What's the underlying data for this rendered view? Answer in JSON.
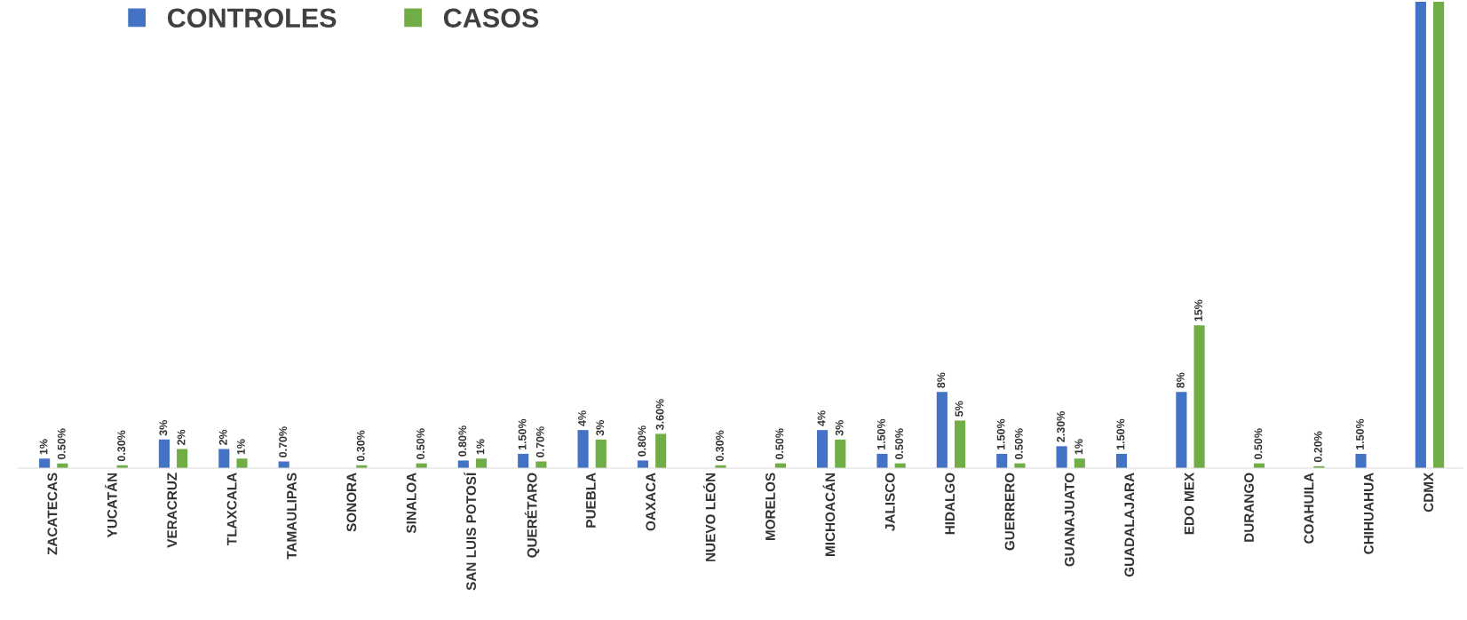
{
  "chart_data": {
    "type": "bar",
    "categories": [
      "ZACATECAS",
      "YUCATÁN",
      "VERACRUZ",
      "TLAXCALA",
      "TAMAULIPAS",
      "SONORA",
      "SINALOA",
      "SAN LUIS POTOSÍ",
      "QUERÉTARO",
      "PUEBLA",
      "OAXACA",
      "NUEVO LEÓN",
      "MORELOS",
      "MICHOACÁN",
      "JALISCO",
      "HIDALGO",
      "GUERRERO",
      "GUANAJUATO",
      "GUADALAJARA",
      "EDO MEX",
      "DURANGO",
      "COAHUILA",
      "CHIHUAHUA",
      "CDMX"
    ],
    "series": [
      {
        "name": "CONTROLES",
        "color": "#4472c4",
        "values": [
          1,
          null,
          3,
          2,
          0.7,
          null,
          null,
          0.8,
          1.5,
          4,
          0.8,
          null,
          null,
          4,
          1.5,
          8,
          1.5,
          2.3,
          1.5,
          8,
          null,
          null,
          1.5,
          49
        ],
        "value_labels": [
          "1%",
          null,
          "3%",
          "2%",
          "0.70%",
          null,
          null,
          "0.80%",
          "1.50%",
          "4%",
          "0.80%",
          null,
          null,
          "4%",
          "1.50%",
          "8%",
          "1.50%",
          "2.30%",
          "1.50%",
          "8%",
          null,
          null,
          "1.50%",
          null
        ]
      },
      {
        "name": "CASOS",
        "color": "#70ad47",
        "values": [
          0.5,
          0.3,
          2,
          1,
          null,
          0.3,
          0.5,
          1,
          0.7,
          3,
          3.6,
          0.3,
          0.5,
          3,
          0.5,
          5,
          0.5,
          1,
          null,
          15,
          0.5,
          0.2,
          null,
          49
        ],
        "value_labels": [
          "0.50%",
          "0.30%",
          "2%",
          "1%",
          null,
          "0.30%",
          "0.50%",
          "1%",
          "0.70%",
          "3%",
          "3.60%",
          "0.30%",
          "0.50%",
          "3%",
          "0.50%",
          "5%",
          "0.50%",
          "1%",
          null,
          "15%",
          "0.50%",
          "0.20%",
          null,
          null
        ]
      }
    ],
    "ylim": [
      0,
      49
    ],
    "tick_labels": "x",
    "legend": "top left",
    "grid": false
  }
}
